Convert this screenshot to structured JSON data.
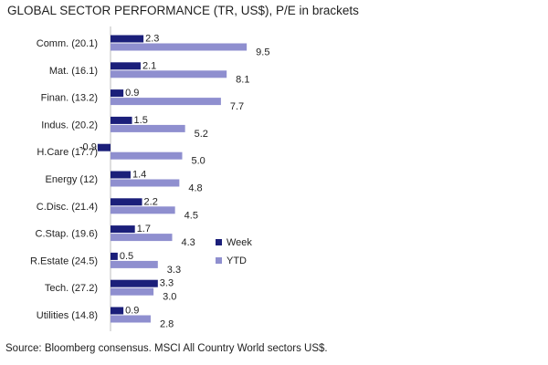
{
  "chart_data": {
    "type": "bar",
    "orientation": "horizontal",
    "title": "GLOBAL SECTOR PERFORMANCE (TR, US$), P/E in brackets",
    "categories": [
      "Comm. (20.1)",
      "Mat. (16.1)",
      "Finan. (13.2)",
      "Indus. (20.2)",
      "H.Care (17.7)",
      "Energy (12)",
      "C.Disc. (21.4)",
      "C.Stap. (19.6)",
      "R.Estate (24.5)",
      "Tech. (27.2)",
      "Utilities (14.8)"
    ],
    "series": [
      {
        "name": "Week",
        "color": "#1b1f7a",
        "values": [
          2.3,
          2.1,
          0.9,
          1.5,
          -0.9,
          1.4,
          2.2,
          1.7,
          0.5,
          3.3,
          0.9
        ]
      },
      {
        "name": "YTD",
        "color": "#8f8fcf",
        "values": [
          9.5,
          8.1,
          7.7,
          5.2,
          5.0,
          4.8,
          4.5,
          4.3,
          3.3,
          3.0,
          2.8
        ]
      }
    ],
    "legend_position": "right",
    "grid": false,
    "xlim": [
      -0.9,
      10
    ]
  },
  "source": "Source: Bloomberg consensus. MSCI All Country World sectors US$."
}
